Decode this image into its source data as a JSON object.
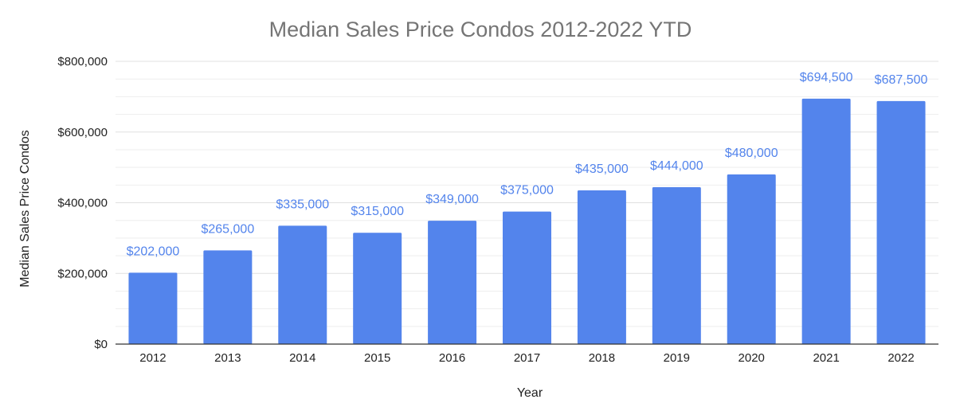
{
  "chart_data": {
    "type": "bar",
    "title": "Median Sales Price Condos 2012-2022 YTD",
    "xlabel": "Year",
    "ylabel": "Median Sales Price Condos",
    "categories": [
      "2012",
      "2013",
      "2014",
      "2015",
      "2016",
      "2017",
      "2018",
      "2019",
      "2020",
      "2021",
      "2022"
    ],
    "values": [
      202000,
      265000,
      335000,
      315000,
      349000,
      375000,
      435000,
      444000,
      480000,
      694500,
      687500
    ],
    "data_labels": [
      "$202,000",
      "$265,000",
      "$335,000",
      "$315,000",
      "$349,000",
      "$375,000",
      "$435,000",
      "$444,000",
      "$480,000",
      "$694,500",
      "$687,500"
    ],
    "ylim": [
      0,
      800000
    ],
    "y_ticks": [
      0,
      200000,
      400000,
      600000,
      800000
    ],
    "y_tick_labels": [
      "$0",
      "$200,000",
      "$400,000",
      "$600,000",
      "$800,000"
    ],
    "grid": true,
    "minor_gridlines": true,
    "legend": "none",
    "colors": {
      "bar": "#5384EC",
      "data_label": "#5384EC",
      "gridline": "#E0E0E0",
      "baseline": "#333333",
      "title": "#757575"
    }
  }
}
